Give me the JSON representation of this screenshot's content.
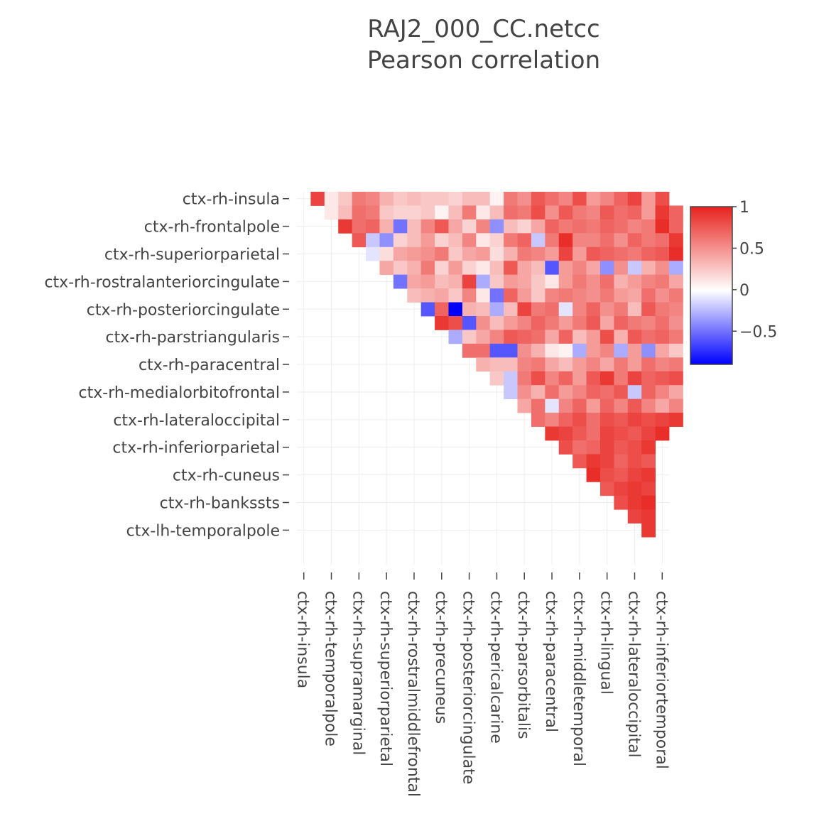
{
  "chart_data": {
    "type": "heatmap",
    "title_lines": [
      "RAJ2_000_CC.netcc",
      "Pearson correlation"
    ],
    "y_tick_labels": [
      "ctx-rh-insula",
      "ctx-rh-frontalpole",
      "ctx-rh-superiorparietal",
      "ctx-rh-rostralanteriorcingulate",
      "ctx-rh-posteriorcingulate",
      "ctx-rh-parstriangularis",
      "ctx-rh-paracentral",
      "ctx-rh-medialorbitofrontal",
      "ctx-rh-lateraloccipital",
      "ctx-rh-inferiorparietal",
      "ctx-rh-cuneus",
      "ctx-rh-bankssts",
      "ctx-lh-temporalpole"
    ],
    "x_tick_labels": [
      "ctx-rh-insula",
      "ctx-rh-temporalpole",
      "ctx-rh-supramarginal",
      "ctx-rh-superiorparietal",
      "ctx-rh-rostralmiddlefrontal",
      "ctx-rh-precuneus",
      "ctx-rh-posteriorcingulate",
      "ctx-rh-pericalcarine",
      "ctx-rh-parsorbitalis",
      "ctx-rh-paracentral",
      "ctx-rh-middletemporal",
      "ctx-rh-lingual",
      "ctx-rh-lateraloccipital",
      "ctx-rh-inferiortemporal"
    ],
    "n_regions": 27,
    "upper_triangle_only": true,
    "zmin": -0.9,
    "zmax": 1.0,
    "colorbar": {
      "ticks": [
        1,
        0.5,
        0,
        -0.5
      ],
      "tick_labels": [
        "1",
        "0.5",
        "0",
        "−0.5"
      ]
    },
    "colorscale": [
      {
        "at": 0.0,
        "color": "#0000ff"
      },
      {
        "at": 0.47,
        "color": "#ffffff"
      },
      {
        "at": 1.0,
        "color": "#e8221d"
      }
    ],
    "grid": true,
    "values_note": "row i lists correlations with columns i+1..26",
    "upper_triangle_values": [
      [
        0.85,
        0.1,
        0.25,
        0.6,
        0.55,
        0.35,
        0.25,
        0.3,
        0.25,
        0.25,
        0.2,
        0.3,
        0.3,
        0.05,
        0.6,
        0.5,
        0.75,
        0.65,
        0.55,
        0.8,
        0.45,
        0.55,
        0.7,
        0.85,
        0.45,
        0.8
      ],
      [
        0.1,
        0.3,
        0.65,
        0.6,
        0.25,
        0.2,
        0.2,
        0.25,
        0.05,
        0.3,
        0.6,
        0.1,
        0.3,
        0.65,
        0.6,
        0.8,
        0.5,
        0.75,
        0.6,
        0.55,
        0.75,
        0.65,
        0.7,
        0.45,
        0.9,
        0.7
      ],
      [
        0.9,
        0.65,
        0.7,
        0.35,
        -0.5,
        0.3,
        0.55,
        0.75,
        0.4,
        0.2,
        0.55,
        -0.4,
        0.3,
        0.2,
        0.4,
        0.7,
        0.6,
        0.65,
        0.6,
        0.7,
        0.65,
        0.55,
        0.6,
        0.95,
        0.7
      ],
      [
        0.75,
        -0.2,
        -0.4,
        0.2,
        0.3,
        0.45,
        0.2,
        0.3,
        0.55,
        0.1,
        0.2,
        0.6,
        0.7,
        -0.2,
        0.6,
        0.95,
        0.55,
        0.55,
        0.65,
        0.5,
        0.7,
        0.6,
        0.65,
        0.9
      ],
      [
        -0.1,
        0.15,
        0.4,
        0.45,
        0.5,
        0.6,
        0.25,
        0.4,
        0.45,
        0.15,
        0.35,
        0.6,
        0.55,
        0.45,
        0.85,
        0.45,
        0.75,
        0.7,
        0.65,
        0.6,
        0.7,
        0.75,
        0.95
      ],
      [
        0.4,
        0.25,
        0.35,
        0.6,
        0.2,
        0.45,
        0.2,
        0.1,
        0.3,
        0.75,
        0.4,
        0.3,
        -0.6,
        0.45,
        0.55,
        0.4,
        -0.4,
        0.5,
        -0.2,
        0.35,
        0.5,
        -0.3
      ],
      [
        -0.5,
        0.4,
        0.45,
        0.3,
        0.35,
        0.85,
        -0.3,
        0.25,
        0.45,
        0.4,
        0.25,
        0.1,
        0.45,
        0.6,
        0.5,
        0.65,
        0.35,
        0.45,
        0.55,
        0.6,
        0.4
      ],
      [
        0.3,
        0.35,
        0.4,
        0.25,
        0.55,
        0.1,
        -0.5,
        0.7,
        0.45,
        0.25,
        0.55,
        0.6,
        0.55,
        0.5,
        0.6,
        0.45,
        0.4,
        0.65,
        0.5,
        0.6
      ],
      [
        -0.6,
        0.7,
        -0.9,
        0.35,
        0.3,
        -0.3,
        0.3,
        0.85,
        0.6,
        0.65,
        -0.1,
        0.55,
        0.7,
        0.5,
        0.6,
        0.3,
        0.75,
        0.6,
        0.55
      ],
      [
        0.9,
        0.8,
        -0.6,
        0.5,
        0.3,
        0.45,
        0.55,
        0.7,
        0.6,
        0.45,
        0.6,
        0.75,
        0.4,
        0.7,
        0.6,
        0.55,
        0.65,
        0.5
      ],
      [
        -0.3,
        0.25,
        0.4,
        0.55,
        0.75,
        0.7,
        0.65,
        0.4,
        0.7,
        0.3,
        0.45,
        0.8,
        0.35,
        0.75,
        0.65,
        0.7,
        0.6
      ],
      [
        0.65,
        0.65,
        -0.6,
        -0.6,
        0.5,
        0.35,
        0.1,
        0.05,
        -0.3,
        0.45,
        0.55,
        -0.3,
        0.45,
        -0.4,
        0.4,
        0.25
      ],
      [
        0.35,
        0.3,
        0.3,
        0.55,
        0.6,
        0.4,
        0.3,
        0.45,
        0.55,
        0.4,
        0.6,
        0.45,
        0.65,
        0.55,
        0.6
      ],
      [
        0.25,
        -0.2,
        0.6,
        0.8,
        0.55,
        0.7,
        0.45,
        0.75,
        0.9,
        0.6,
        0.85,
        0.7,
        0.75,
        0.8
      ],
      [
        -0.2,
        0.5,
        0.35,
        0.65,
        0.45,
        0.55,
        0.7,
        0.65,
        0.75,
        -0.2,
        0.7,
        0.55,
        0.4
      ],
      [
        0.4,
        0.65,
        -0.1,
        0.55,
        0.7,
        0.45,
        0.7,
        0.55,
        0.75,
        0.55,
        0.4,
        0.55
      ],
      [
        0.65,
        0.55,
        0.7,
        0.8,
        0.65,
        0.8,
        0.75,
        0.85,
        0.8,
        0.85,
        0.9
      ],
      [
        0.9,
        0.85,
        0.75,
        0.65,
        0.85,
        0.8,
        0.75,
        0.85,
        0.95
      ],
      [
        0.8,
        0.65,
        0.7,
        0.85,
        0.75,
        0.8,
        0.9
      ],
      [
        0.75,
        0.9,
        0.85,
        0.7,
        0.8,
        0.75
      ],
      [
        0.95,
        0.8,
        0.75,
        0.85,
        0.9
      ],
      [
        0.75,
        0.85,
        0.9,
        0.85
      ],
      [
        0.8,
        0.9,
        0.95
      ],
      [
        0.85,
        0.9
      ],
      [
        0.9
      ],
      []
    ]
  }
}
